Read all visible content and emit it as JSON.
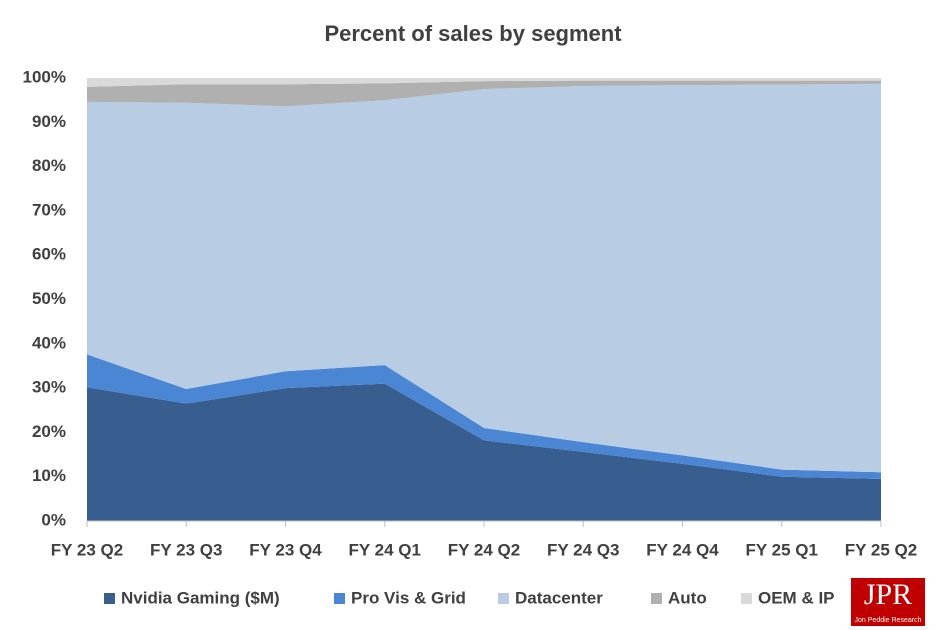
{
  "chart_data": {
    "type": "stacked-area",
    "title": "Percent of sales by segment",
    "categories": [
      "FY 23 Q2",
      "FY 23 Q3",
      "FY 23 Q4",
      "FY 24 Q1",
      "FY 24 Q2",
      "FY 24 Q3",
      "FY 24 Q4",
      "FY 25 Q1",
      "FY 25 Q2"
    ],
    "series": [
      {
        "name": "Nvidia Gaming ($M)",
        "color": "#375e8f",
        "values": [
          30.2,
          26.5,
          30.0,
          31.0,
          18.2,
          15.6,
          12.9,
          10.0,
          9.5
        ]
      },
      {
        "name": "Pro Vis & Grid",
        "color": "#4a86d4",
        "values": [
          7.4,
          3.3,
          3.8,
          4.2,
          2.8,
          2.2,
          1.9,
          1.6,
          1.5
        ]
      },
      {
        "name": "Datacenter",
        "color": "#b8cce4",
        "values": [
          57.0,
          64.6,
          59.8,
          59.8,
          76.5,
          80.4,
          83.6,
          86.9,
          87.7
        ]
      },
      {
        "name": "Auto",
        "color": "#b0b0b0",
        "values": [
          3.4,
          4.2,
          5.0,
          3.8,
          1.8,
          1.2,
          1.0,
          0.9,
          0.7
        ]
      },
      {
        "name": "OEM & IP",
        "color": "#d9d9d9",
        "values": [
          2.0,
          1.4,
          1.4,
          1.2,
          0.7,
          0.6,
          0.6,
          0.6,
          0.6
        ]
      }
    ],
    "ylim": [
      0,
      100
    ],
    "yticks": [
      {
        "value": 0,
        "label": "0%"
      },
      {
        "value": 10,
        "label": "10%"
      },
      {
        "value": 20,
        "label": "20%"
      },
      {
        "value": 30,
        "label": "30%"
      },
      {
        "value": 40,
        "label": "40%"
      },
      {
        "value": 50,
        "label": "50%"
      },
      {
        "value": 60,
        "label": "60%"
      },
      {
        "value": 70,
        "label": "70%"
      },
      {
        "value": 80,
        "label": "80%"
      },
      {
        "value": 90,
        "label": "90%"
      },
      {
        "value": 100,
        "label": "100%"
      }
    ],
    "grid": false,
    "legend": "bottom"
  },
  "logo": {
    "text": "JPR",
    "subtitle": "Jon Peddie Research"
  }
}
